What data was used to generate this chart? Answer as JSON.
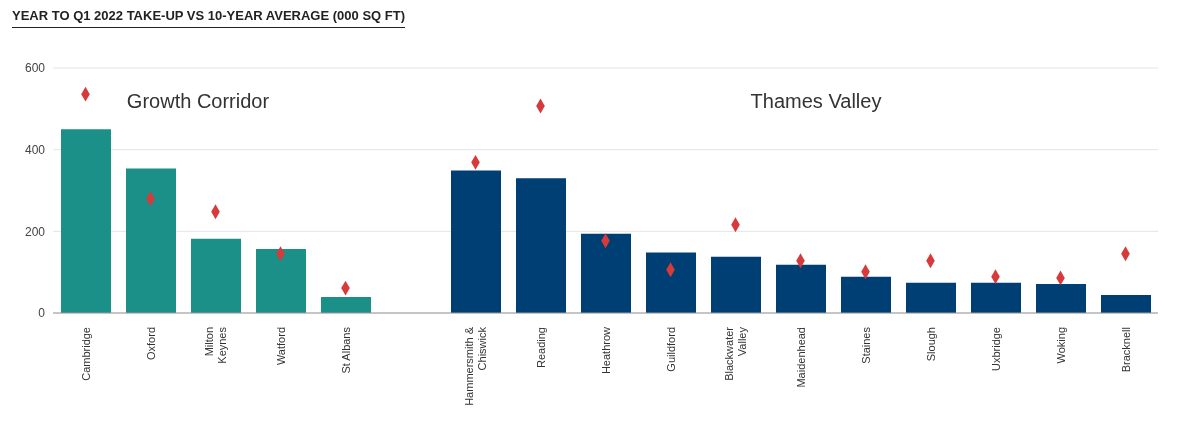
{
  "chart_data": {
    "type": "bar",
    "title": "YEAR TO Q1 2022 TAKE-UP VS 10-YEAR AVERAGE (000 SQ FT)",
    "categories": [
      "Cambridge",
      "Oxford",
      "Milton Keynes",
      "Watford",
      "St Albans",
      null,
      "Hammersmith & Chiswick",
      "Reading",
      "Heathrow",
      "Guildford",
      "Blackwater Valley",
      "Maidenhead",
      "Staines",
      "Slough",
      "Uxbridge",
      "Woking",
      "Bracknell"
    ],
    "series": [
      {
        "colors": [
          "#1a9089",
          "#1a9089",
          "#1a9089",
          "#1a9089",
          "#1a9089",
          null,
          "#003f73",
          "#003f73",
          "#003f73",
          "#003f73",
          "#003f73",
          "#003f73",
          "#003f73",
          "#003f73",
          "#003f73",
          "#003f73",
          "#003f73"
        ],
        "values": [
          450,
          354,
          182,
          157,
          39,
          null,
          349,
          330,
          194,
          148,
          138,
          118,
          89,
          74,
          74,
          71,
          44
        ]
      },
      {
        "type": "scatter",
        "color": "#d63a3a",
        "marker": "diamond",
        "values": [
          536,
          280,
          248,
          145,
          61,
          null,
          369,
          507,
          177,
          106,
          216,
          128,
          101,
          128,
          89,
          86,
          145
        ]
      }
    ],
    "annotations": [
      "Growth Corridor",
      "Thames Valley"
    ],
    "ylim": [
      0,
      600
    ],
    "yticks": [
      0,
      200,
      400,
      600
    ],
    "grid": "y"
  }
}
